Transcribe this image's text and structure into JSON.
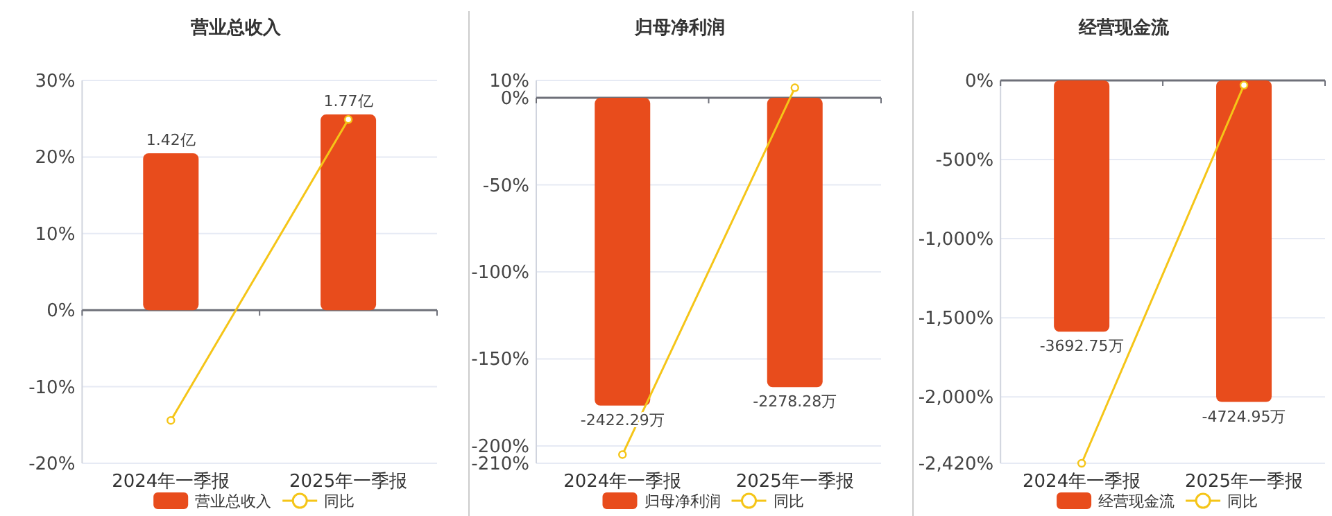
{
  "chart_data": [
    {
      "type": "bar",
      "title": "营业总收入",
      "categories": [
        "2024年一季报",
        "2025年一季报"
      ],
      "grid": "y",
      "legend": "bottom",
      "series": [
        {
          "name": "营业总收入",
          "color": "#e84c1c",
          "values": [
            1.42,
            1.77
          ],
          "value_labels": [
            "1.42亿",
            "1.77亿"
          ],
          "axis": "y2"
        },
        {
          "name": "同比",
          "type": "line",
          "color": "#f5c518",
          "marker": "circle",
          "values": [
            -14.4,
            24.9
          ]
        }
      ],
      "ylim": [
        -20,
        30
      ],
      "yticks": [
        {
          "value": -20,
          "label": "-20%"
        },
        {
          "value": -10,
          "label": "-10%"
        },
        {
          "value": 0,
          "label": "0%"
        },
        {
          "value": 10,
          "label": "10%"
        },
        {
          "value": 20,
          "label": "20%"
        },
        {
          "value": 30,
          "label": "30%"
        }
      ],
      "y2lim": [
        -1.385,
        2.078
      ]
    },
    {
      "type": "bar",
      "title": "归母净利润",
      "categories": [
        "2024年一季报",
        "2025年一季报"
      ],
      "grid": "y",
      "legend": "bottom",
      "series": [
        {
          "name": "归母净利润",
          "color": "#e84c1c",
          "values": [
            -2422.29,
            -2278.28
          ],
          "value_labels": [
            "-2422.29万",
            "-2278.28万"
          ],
          "axis": "y2"
        },
        {
          "name": "同比",
          "type": "line",
          "color": "#f5c518",
          "marker": "circle",
          "values": [
            -205,
            5.8
          ]
        }
      ],
      "ylim": [
        -210,
        10
      ],
      "yticks": [
        {
          "value": -210,
          "label": "-210%"
        },
        {
          "value": -200,
          "label": "-200%"
        },
        {
          "value": -150,
          "label": "-150%"
        },
        {
          "value": -100,
          "label": "-100%"
        },
        {
          "value": -50,
          "label": "-50%"
        },
        {
          "value": 0,
          "label": "0%"
        },
        {
          "value": 10,
          "label": "10%"
        }
      ],
      "y2lim": [
        -2877,
        137
      ]
    },
    {
      "type": "bar",
      "title": "经营现金流",
      "categories": [
        "2024年一季报",
        "2025年一季报"
      ],
      "grid": "y",
      "legend": "bottom",
      "series": [
        {
          "name": "经营现金流",
          "color": "#e84c1c",
          "values": [
            -3692.75,
            -4724.95
          ],
          "value_labels": [
            "-3692.75万",
            "-4724.95万"
          ],
          "axis": "y2"
        },
        {
          "name": "同比",
          "type": "line",
          "color": "#f5c518",
          "marker": "circle",
          "values": [
            -2420,
            -30
          ]
        }
      ],
      "ylim": [
        -2420,
        0
      ],
      "yticks": [
        {
          "value": -2420,
          "label": "-2,420%"
        },
        {
          "value": -2000,
          "label": "-2,000%"
        },
        {
          "value": -1500,
          "label": "-1,500%"
        },
        {
          "value": -1000,
          "label": "-1,000%"
        },
        {
          "value": -500,
          "label": "-500%"
        },
        {
          "value": 0,
          "label": "0%"
        }
      ],
      "y2lim": [
        -5627,
        0
      ]
    }
  ]
}
